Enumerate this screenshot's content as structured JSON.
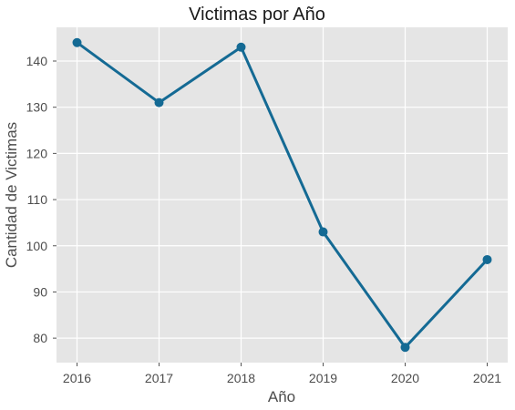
{
  "chart_data": {
    "type": "line",
    "title": "Victimas por Año",
    "xlabel": "Año",
    "ylabel": "Cantidad de Victimas",
    "x": [
      2016,
      2017,
      2018,
      2019,
      2020,
      2021
    ],
    "series": [
      {
        "values": [
          144,
          131,
          143,
          103,
          78,
          97
        ]
      }
    ],
    "x_ticks": [
      "2016",
      "2017",
      "2018",
      "2019",
      "2020",
      "2021"
    ],
    "y_ticks": [
      "80",
      "90",
      "100",
      "110",
      "120",
      "130",
      "140"
    ],
    "xlim": [
      2015.75,
      2021.25
    ],
    "ylim": [
      74.7,
      147.3
    ],
    "grid": true,
    "colors": {
      "line": "#146a94",
      "plot_background": "#e5e5e5"
    }
  }
}
